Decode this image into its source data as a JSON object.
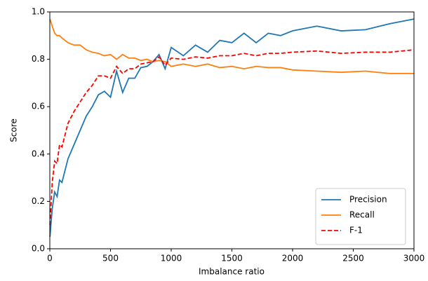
{
  "chart_data": {
    "type": "line",
    "xlabel": "Imbalance ratio",
    "ylabel": "Score",
    "x": [
      1,
      20,
      40,
      60,
      80,
      100,
      150,
      200,
      250,
      300,
      350,
      400,
      450,
      500,
      550,
      600,
      650,
      700,
      750,
      800,
      850,
      900,
      950,
      1000,
      1100,
      1200,
      1300,
      1400,
      1500,
      1600,
      1700,
      1800,
      1900,
      2000,
      2200,
      2400,
      2600,
      2800,
      3000
    ],
    "series": [
      {
        "name": "Precision",
        "color": "#1f77b4",
        "linestyle": "solid",
        "values": [
          0.05,
          0.17,
          0.24,
          0.22,
          0.29,
          0.28,
          0.38,
          0.44,
          0.5,
          0.56,
          0.6,
          0.65,
          0.665,
          0.64,
          0.75,
          0.66,
          0.72,
          0.72,
          0.765,
          0.77,
          0.79,
          0.82,
          0.76,
          0.85,
          0.815,
          0.86,
          0.83,
          0.88,
          0.87,
          0.91,
          0.87,
          0.91,
          0.9,
          0.92,
          0.94,
          0.92,
          0.925,
          0.95,
          0.97
        ]
      },
      {
        "name": "Recall",
        "color": "#ff7f0e",
        "linestyle": "solid",
        "values": [
          0.97,
          0.94,
          0.91,
          0.9,
          0.9,
          0.89,
          0.87,
          0.86,
          0.86,
          0.84,
          0.83,
          0.825,
          0.815,
          0.82,
          0.8,
          0.82,
          0.805,
          0.805,
          0.795,
          0.8,
          0.79,
          0.795,
          0.79,
          0.77,
          0.78,
          0.77,
          0.78,
          0.765,
          0.77,
          0.76,
          0.77,
          0.765,
          0.765,
          0.755,
          0.75,
          0.745,
          0.75,
          0.74,
          0.74
        ]
      },
      {
        "name": "F-1",
        "color": "#ff0000",
        "linestyle": "dashed",
        "values": [
          0.1,
          0.28,
          0.37,
          0.36,
          0.44,
          0.43,
          0.53,
          0.58,
          0.62,
          0.66,
          0.69,
          0.73,
          0.73,
          0.72,
          0.77,
          0.74,
          0.76,
          0.76,
          0.78,
          0.785,
          0.79,
          0.81,
          0.775,
          0.805,
          0.8,
          0.81,
          0.805,
          0.815,
          0.815,
          0.825,
          0.815,
          0.825,
          0.825,
          0.83,
          0.835,
          0.825,
          0.83,
          0.83,
          0.84
        ]
      }
    ],
    "xlim": [
      0,
      3000
    ],
    "xticks": [
      0,
      500,
      1000,
      1500,
      2000,
      2500,
      3000
    ],
    "ylim": [
      0,
      1
    ],
    "yticks": [
      {
        "value": 0,
        "label": "0.0"
      },
      0.2,
      0.4,
      0.6,
      0.8,
      {
        "value": 1,
        "label": "1.0"
      }
    ],
    "grid": false,
    "legend_position": "lower right"
  }
}
